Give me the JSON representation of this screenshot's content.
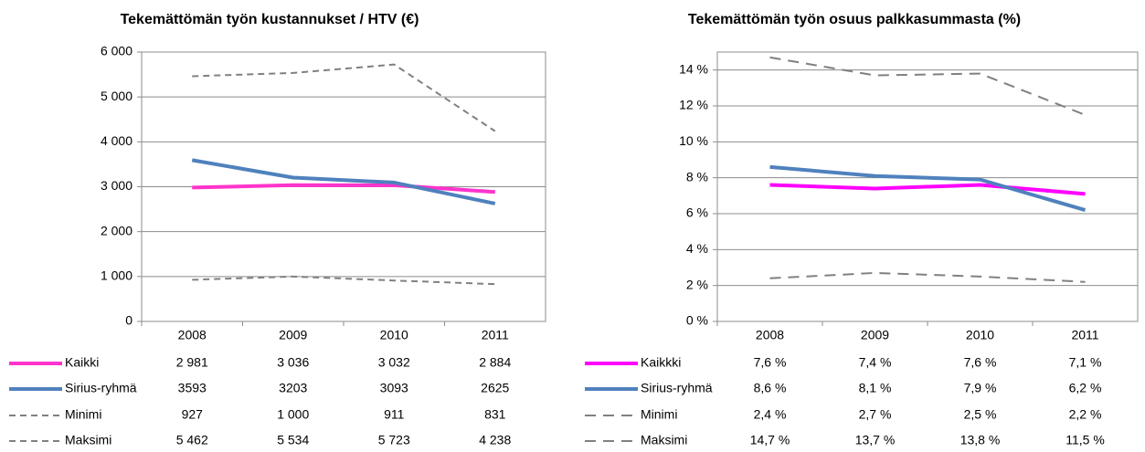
{
  "chart_data": [
    {
      "type": "line",
      "title": "Tekemättömän työn kustannukset / HTV (€)",
      "categories": [
        "2008",
        "2009",
        "2010",
        "2011"
      ],
      "ylim": [
        0,
        6000
      ],
      "yticks": [
        0,
        {
          "value": 1000,
          "label": "1 000"
        },
        {
          "value": 2000,
          "label": "2 000"
        },
        {
          "value": 3000,
          "label": "3 000"
        },
        {
          "value": 4000,
          "label": "4 000"
        },
        {
          "value": 5000,
          "label": "5 000"
        },
        {
          "value": 6000,
          "label": "6 000"
        }
      ],
      "grid": true,
      "legend": "table",
      "series": [
        {
          "name": "Kaikki",
          "color": "#ff33cc",
          "line_style": "solid",
          "values": [
            2981,
            3036,
            3032,
            2884
          ],
          "value_labels": [
            "2 981",
            "3 036",
            "3 032",
            "2 884"
          ]
        },
        {
          "name": "Sirius-ryhmä",
          "color": "#4f81bd",
          "line_style": "solid",
          "values": [
            3593,
            3203,
            3093,
            2625
          ]
        },
        {
          "name": "Minimi",
          "color": "#808080",
          "line_style": "dashed",
          "values": [
            927,
            1000,
            911,
            831
          ],
          "value_labels": [
            "927",
            "1 000",
            "911",
            "831"
          ]
        },
        {
          "name": "Maksimi",
          "color": "#808080",
          "line_style": "dashed",
          "values": [
            5462,
            5534,
            5723,
            4238
          ],
          "value_labels": [
            "5 462",
            "5 534",
            "5 723",
            "4 238"
          ]
        }
      ]
    },
    {
      "type": "line",
      "title": "Tekemättömän työn osuus palkkasummasta (%)",
      "categories": [
        "2008",
        "2009",
        "2010",
        "2011"
      ],
      "ylim": [
        0,
        15
      ],
      "yticks": [
        {
          "value": 0,
          "label": "0 %"
        },
        {
          "value": 2,
          "label": "2 %"
        },
        {
          "value": 4,
          "label": "4 %"
        },
        {
          "value": 6,
          "label": "6 %"
        },
        {
          "value": 8,
          "label": "8 %"
        },
        {
          "value": 10,
          "label": "10 %"
        },
        {
          "value": 12,
          "label": "12 %"
        },
        {
          "value": 14,
          "label": "14 %"
        }
      ],
      "grid": true,
      "legend": "table",
      "series": [
        {
          "name": "Kaikkki",
          "color": "#ff00ff",
          "line_style": "solid",
          "values": [
            7.6,
            7.4,
            7.6,
            7.1
          ],
          "value_labels": [
            "7,6 %",
            "7,4 %",
            "7,6 %",
            "7,1 %"
          ]
        },
        {
          "name": "Sirius-ryhmä",
          "color": "#4f81bd",
          "line_style": "solid",
          "values": [
            8.6,
            8.1,
            7.9,
            6.2
          ],
          "value_labels": [
            "8,6 %",
            "8,1 %",
            "7,9 %",
            "6,2 %"
          ]
        },
        {
          "name": "Minimi",
          "color": "#808080",
          "line_style": "dashed",
          "values": [
            2.4,
            2.7,
            2.5,
            2.2
          ],
          "value_labels": [
            "2,4 %",
            "2,7 %",
            "2,5 %",
            "2,2 %"
          ]
        },
        {
          "name": "Maksimi",
          "color": "#808080",
          "line_style": "dashed",
          "values": [
            14.7,
            13.7,
            13.8,
            11.5
          ],
          "value_labels": [
            "14,7 %",
            "13,7 %",
            "13,8 %",
            "11,5 %"
          ]
        }
      ]
    }
  ]
}
